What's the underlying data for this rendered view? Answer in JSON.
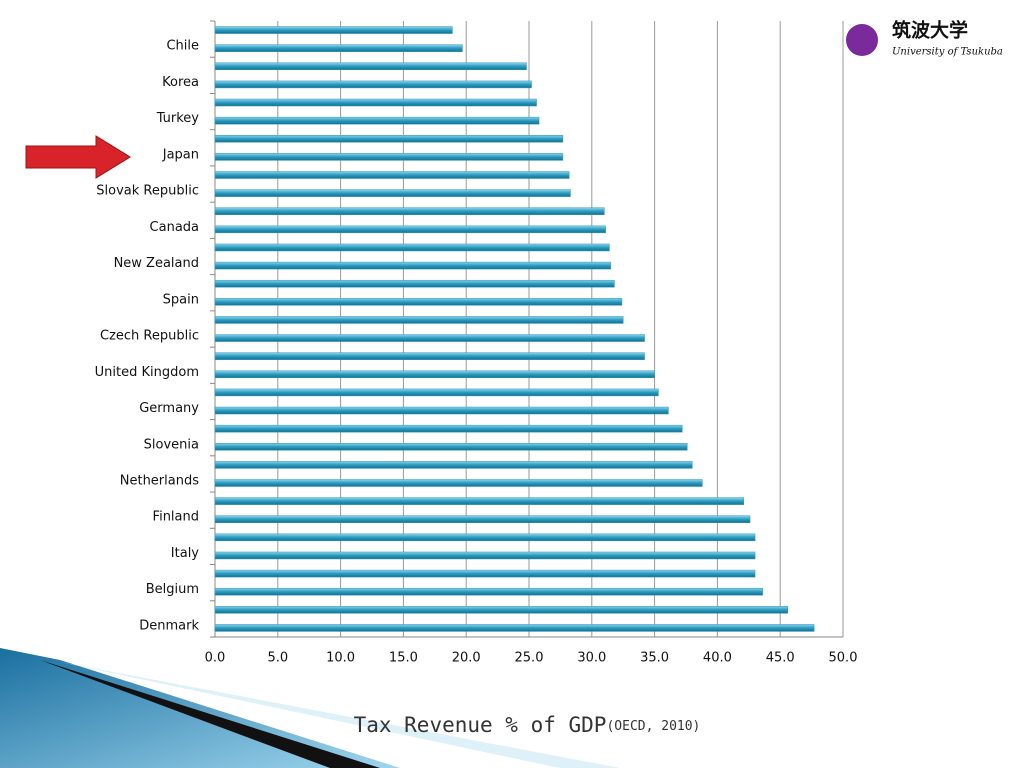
{
  "chart_data": {
    "type": "bar",
    "orientation": "horizontal",
    "title": "Tax Revenue % of GDP",
    "subtitle": "(OECD, 2010)",
    "logo": {
      "name": "筑波大学",
      "subname": "University of Tsukuba"
    },
    "categories": [
      null,
      "Chile",
      null,
      "Korea",
      null,
      "Turkey",
      null,
      "Japan",
      null,
      "Slovak Republic",
      null,
      "Canada",
      null,
      "New Zealand",
      null,
      "Spain",
      null,
      "Czech Republic",
      null,
      "United Kingdom",
      null,
      "Germany",
      null,
      "Slovenia",
      null,
      "Netherlands",
      null,
      "Finland",
      null,
      "Italy",
      null,
      "Belgium",
      null,
      "Denmark"
    ],
    "values": [
      18.9,
      19.7,
      24.8,
      25.2,
      25.6,
      25.8,
      27.7,
      27.7,
      28.2,
      28.3,
      31.0,
      31.1,
      31.4,
      31.5,
      31.8,
      32.4,
      32.5,
      34.2,
      34.2,
      35.0,
      35.3,
      36.1,
      37.2,
      37.6,
      38.0,
      38.8,
      42.1,
      42.6,
      43.0,
      43.0,
      43.0,
      43.6,
      45.6,
      47.7
    ],
    "color": "#2a9bc0",
    "xlim": [
      0,
      50
    ],
    "xticks": [
      {
        "value": 0,
        "label": "0.0"
      },
      {
        "value": 5,
        "label": "5.0"
      },
      {
        "value": 10,
        "label": "10.0"
      },
      {
        "value": 15,
        "label": "15.0"
      },
      {
        "value": 20,
        "label": "20.0"
      },
      {
        "value": 25,
        "label": "25.0"
      },
      {
        "value": 30,
        "label": "30.0"
      },
      {
        "value": 35,
        "label": "35.0"
      },
      {
        "value": 40,
        "label": "40.0"
      },
      {
        "value": 45,
        "label": "45.0"
      },
      {
        "value": 50,
        "label": "50.0"
      }
    ],
    "grid": true
  }
}
